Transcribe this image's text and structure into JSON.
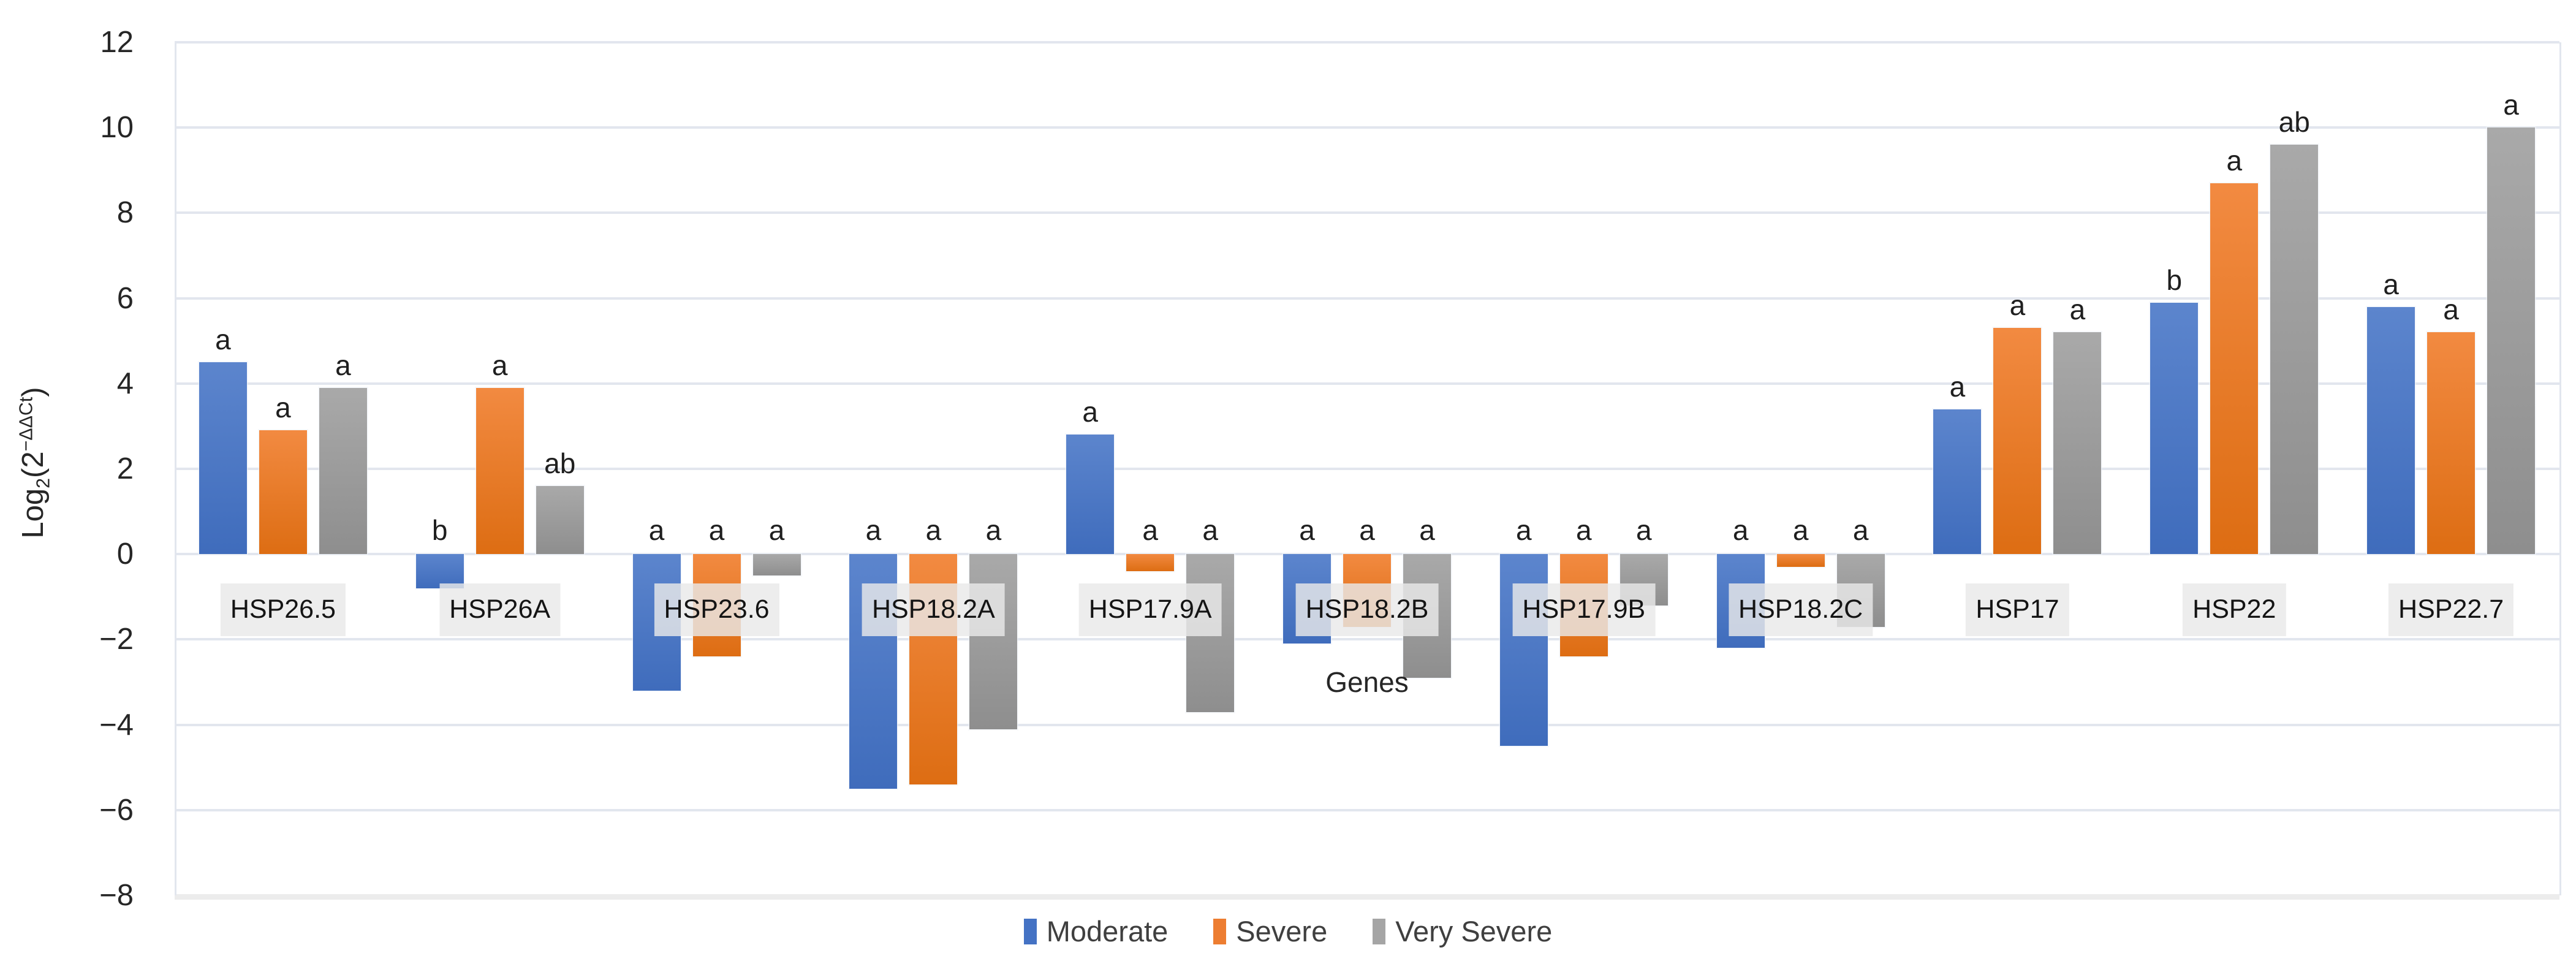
{
  "chart_data": {
    "type": "bar",
    "title": "",
    "xlabel": "Genes",
    "ylabel_text": "Log2(2−ΔΔCt)",
    "ylabel_parts": {
      "prefix": "Log",
      "sub": "2",
      "open": "(2",
      "sup": "−ΔΔCt",
      "close": ")"
    },
    "ylim": [
      -8,
      12
    ],
    "ytick_step": 2,
    "ytick_labels": [
      "12",
      "10",
      "8",
      "6",
      "4",
      "2",
      "0",
      "−2",
      "−4",
      "−6",
      "−8"
    ],
    "grid": true,
    "legend_position": "bottom",
    "categories": [
      "HSP26.5",
      "HSP26A",
      "HSP23.6",
      "HSP18.2A",
      "HSP17.9A",
      "HSP18.2B",
      "HSP17.9B",
      "HSP18.2C",
      "HSP17",
      "HSP22",
      "HSP22.7"
    ],
    "series": [
      {
        "name": "Moderate",
        "color": "#4472C4",
        "values": [
          4.5,
          -0.8,
          -3.2,
          -5.5,
          2.8,
          -2.1,
          -4.5,
          -2.2,
          3.4,
          5.9,
          5.8
        ],
        "letters": [
          "a",
          "b",
          "a",
          "a",
          "a",
          "a",
          "a",
          "a",
          "a",
          "b",
          "a"
        ]
      },
      {
        "name": "Severe",
        "color": "#ED7D31",
        "values": [
          2.9,
          3.9,
          -2.4,
          -5.4,
          -0.4,
          -1.7,
          -2.4,
          -0.3,
          5.3,
          8.7,
          5.2
        ],
        "letters": [
          "a",
          "a",
          "a",
          "a",
          "a",
          "a",
          "a",
          "a",
          "a",
          "a",
          "a"
        ]
      },
      {
        "name": "Very Severe",
        "color": "#A5A5A5",
        "values": [
          3.9,
          1.6,
          -0.5,
          -4.1,
          -3.7,
          -2.9,
          -1.2,
          -1.7,
          5.2,
          9.6,
          10.0
        ],
        "letters": [
          "a",
          "ab",
          "a",
          "a",
          "a",
          "a",
          "a",
          "a",
          "a",
          "ab",
          "a"
        ]
      }
    ]
  },
  "colors": {
    "gridline": "#e2e6ee",
    "plot_bottom_strip": "#ececec",
    "tick_text": "#262626",
    "letter_text": "#1f1f1f",
    "category_label_bg": "#e9e9e9"
  }
}
